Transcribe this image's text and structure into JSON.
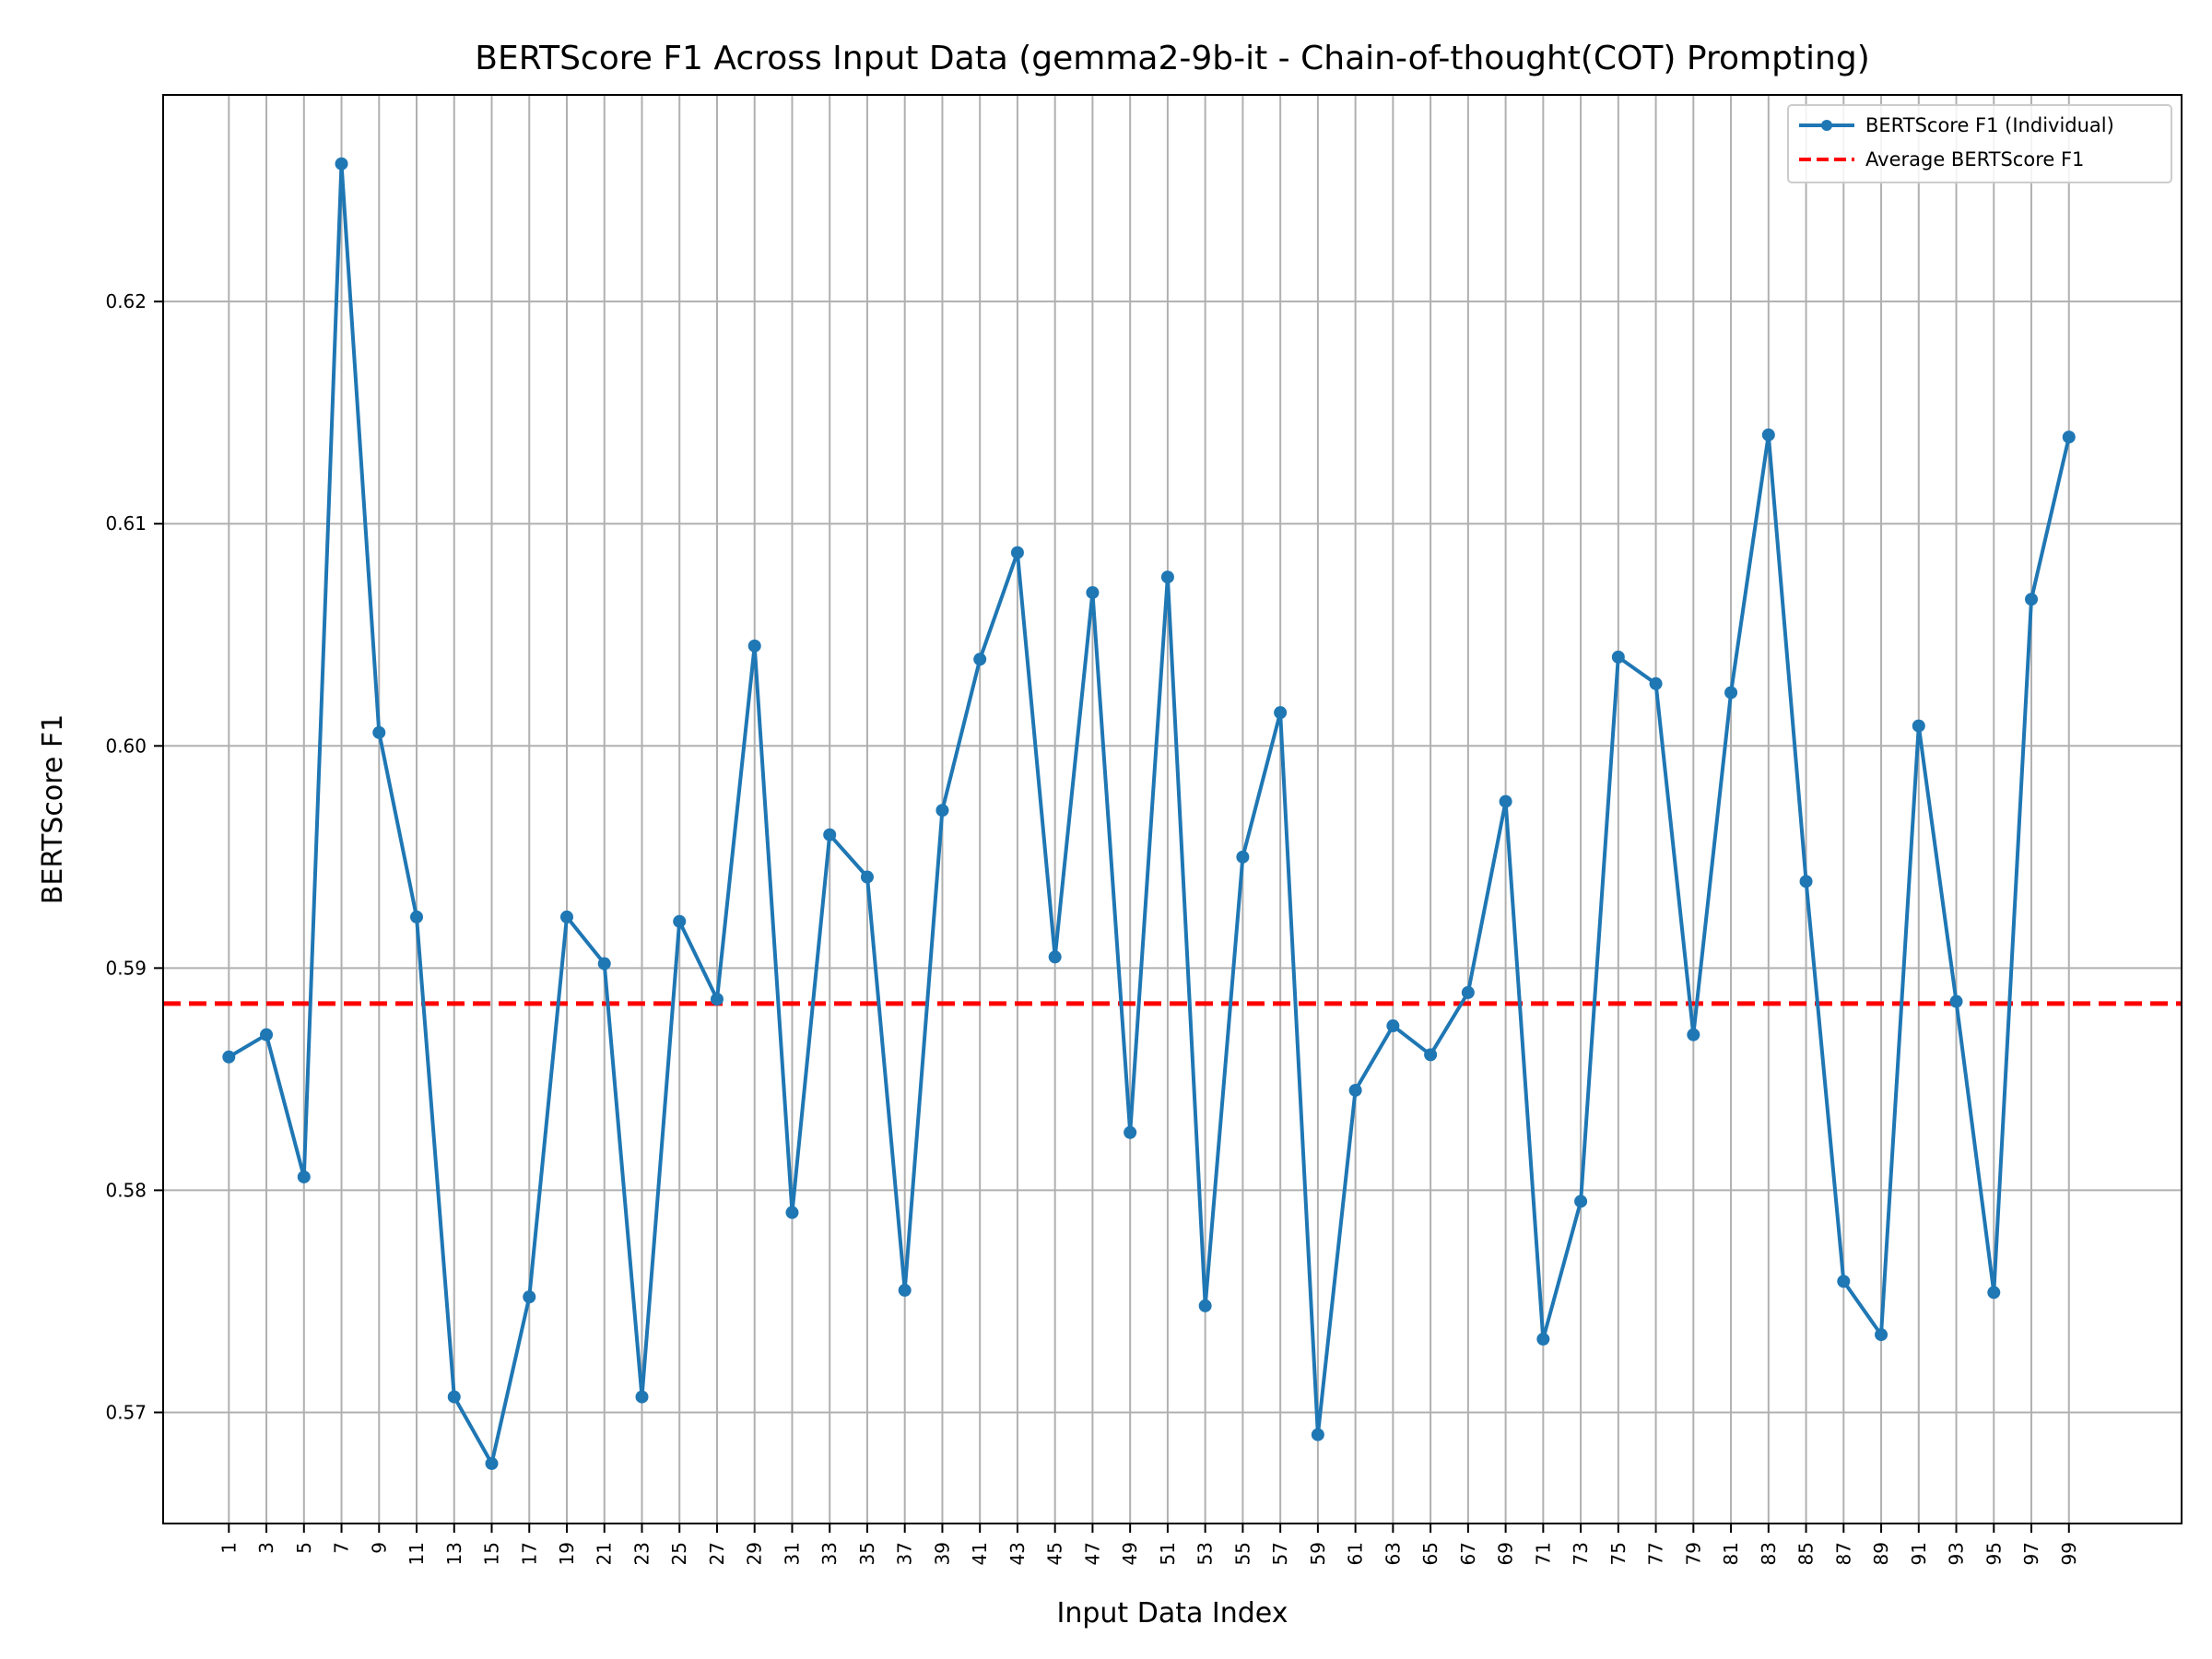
{
  "chart_data": {
    "type": "line",
    "title": "BERTScore F1 Across Input Data (gemma2-9b-it - Chain-of-thought(COT) Prompting)",
    "xlabel": "Input Data Index",
    "ylabel": "BERTScore F1",
    "xlim": [
      -2.5,
      105
    ],
    "ylim": [
      0.565,
      0.6293
    ],
    "grid": true,
    "legend_position": "top-right",
    "x": [
      1,
      3,
      5,
      7,
      9,
      11,
      13,
      15,
      17,
      19,
      21,
      23,
      25,
      27,
      29,
      31,
      33,
      35,
      37,
      39,
      41,
      43,
      45,
      47,
      49,
      51,
      53,
      55,
      57,
      59,
      61,
      63,
      65,
      67,
      69,
      71,
      73,
      75,
      77,
      79,
      81,
      83,
      85,
      87,
      89,
      91,
      93,
      95,
      97,
      99
    ],
    "x_ticks": [
      "1",
      "3",
      "5",
      "7",
      "9",
      "11",
      "13",
      "15",
      "17",
      "19",
      "21",
      "23",
      "25",
      "27",
      "29",
      "31",
      "33",
      "35",
      "37",
      "39",
      "41",
      "43",
      "45",
      "47",
      "49",
      "51",
      "53",
      "55",
      "57",
      "59",
      "61",
      "63",
      "65",
      "67",
      "69",
      "71",
      "73",
      "75",
      "77",
      "79",
      "81",
      "83",
      "85",
      "87",
      "89",
      "91",
      "93",
      "95",
      "97",
      "99"
    ],
    "y_ticks": [
      {
        "value": 0.57,
        "label": "0.57"
      },
      {
        "value": 0.58,
        "label": "0.58"
      },
      {
        "value": 0.59,
        "label": "0.59"
      },
      {
        "value": 0.6,
        "label": "0.60"
      },
      {
        "value": 0.61,
        "label": "0.61"
      },
      {
        "value": 0.62,
        "label": "0.62"
      }
    ],
    "series": [
      {
        "name": "BERTScore F1 (Individual)",
        "color": "#1f77b4",
        "style": "solid-with-markers",
        "values": [
          0.586,
          0.587,
          0.5806,
          0.6262,
          0.6006,
          0.5923,
          0.5707,
          0.5677,
          0.5752,
          0.5923,
          0.5902,
          0.5707,
          0.5921,
          0.5886,
          0.6045,
          0.579,
          0.596,
          0.5941,
          0.5755,
          0.5971,
          0.6039,
          0.6087,
          0.5905,
          0.6069,
          0.5826,
          0.6076,
          0.5748,
          0.595,
          0.6015,
          0.569,
          0.5845,
          0.5874,
          0.5861,
          0.5889,
          0.5975,
          0.5733,
          0.5795,
          0.604,
          0.6028,
          0.587,
          0.6024,
          0.614,
          0.5939,
          0.5759,
          0.5735,
          0.6009,
          0.5885,
          0.5754,
          0.6066,
          0.6139
        ]
      },
      {
        "name": "Average BERTScore F1",
        "color": "#ff0000",
        "style": "dashed",
        "value": 0.5884
      }
    ]
  }
}
